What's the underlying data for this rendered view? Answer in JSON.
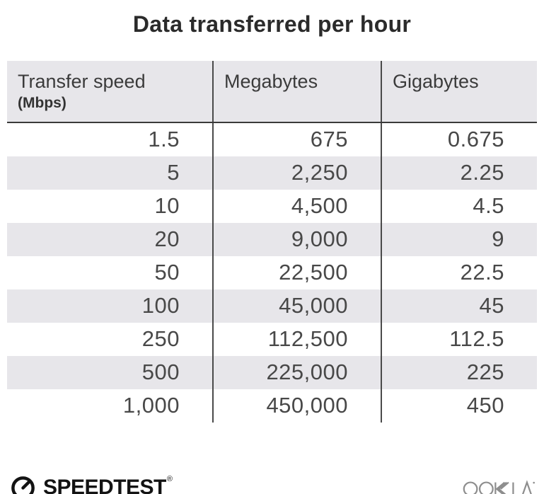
{
  "title": "Data transferred per hour",
  "table": {
    "columns": [
      {
        "label": "Transfer speed",
        "sublabel": "(Mbps)"
      },
      {
        "label": "Megabytes"
      },
      {
        "label": "Gigabytes"
      }
    ],
    "rows": [
      [
        "1.5",
        "675",
        "0.675"
      ],
      [
        "5",
        "2,250",
        "2.25"
      ],
      [
        "10",
        "4,500",
        "4.5"
      ],
      [
        "20",
        "9,000",
        "9"
      ],
      [
        "50",
        "22,500",
        "22.5"
      ],
      [
        "100",
        "45,000",
        "45"
      ],
      [
        "250",
        "112,500",
        "112.5"
      ],
      [
        "500",
        "225,000",
        "225"
      ],
      [
        "1,000",
        "450,000",
        "450"
      ]
    ]
  },
  "chart_data": {
    "type": "table",
    "title": "Data transferred per hour",
    "columns": [
      "Transfer speed (Mbps)",
      "Megabytes",
      "Gigabytes"
    ],
    "rows": [
      [
        1.5,
        675,
        0.675
      ],
      [
        5,
        2250,
        2.25
      ],
      [
        10,
        4500,
        4.5
      ],
      [
        20,
        9000,
        9
      ],
      [
        50,
        22500,
        22.5
      ],
      [
        100,
        45000,
        45
      ],
      [
        250,
        112500,
        112.5
      ],
      [
        500,
        225000,
        225
      ],
      [
        1000,
        450000,
        450
      ]
    ]
  },
  "footer": {
    "brand": "SPEEDTEST",
    "brand_mark": "®",
    "company": "OOKLA"
  },
  "colors": {
    "stripe": "#e7e6ea",
    "divider": "#4a4a4a",
    "header_border": "#3a3a3a",
    "title_text": "#2b2b2b",
    "number_text": "#484848",
    "brand_black": "#131313",
    "ookla_gray": "#8e8e8e"
  }
}
